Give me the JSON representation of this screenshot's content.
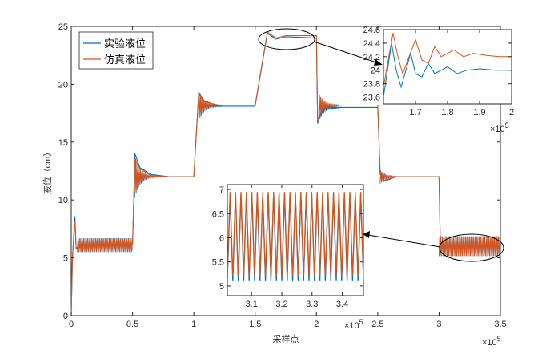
{
  "chart_data": [
    {
      "id": "main",
      "type": "line",
      "xlabel": "采样点",
      "ylabel": "液位（cm）",
      "x_exponent": "×10",
      "x_exponent_power": "5",
      "xlim": [
        0,
        3.5
      ],
      "ylim": [
        0,
        25
      ],
      "xticks": [
        "0",
        "0.5",
        "1",
        "1.5",
        "2",
        "2.5",
        "3",
        "3.5"
      ],
      "yticks": [
        "0",
        "5",
        "10",
        "15",
        "20",
        "25"
      ],
      "grid": false,
      "legend_position": "top-left",
      "series": [
        {
          "name": "实验液位",
          "color": "#0072BD",
          "points": [
            [
              0,
              0
            ],
            [
              0.01,
              5
            ],
            [
              0.03,
              8.6
            ],
            [
              0.04,
              5.8
            ],
            [
              0.1,
              6
            ],
            [
              0.3,
              6.2
            ],
            [
              0.5,
              6.2
            ],
            [
              0.52,
              14
            ],
            [
              0.56,
              12.8
            ],
            [
              0.65,
              12.2
            ],
            [
              0.8,
              12
            ],
            [
              1.0,
              12
            ],
            [
              1.04,
              19.3
            ],
            [
              1.08,
              18.6
            ],
            [
              1.2,
              18.1
            ],
            [
              1.5,
              18.1
            ],
            [
              1.6,
              24.4
            ],
            [
              1.67,
              23.9
            ],
            [
              1.75,
              24.1
            ],
            [
              2.0,
              24.0
            ],
            [
              2.01,
              16.6
            ],
            [
              2.05,
              17.8
            ],
            [
              2.2,
              18.0
            ],
            [
              2.5,
              18.0
            ],
            [
              2.52,
              12.2
            ],
            [
              2.55,
              11.6
            ],
            [
              2.65,
              12.0
            ],
            [
              3.0,
              12.0
            ],
            [
              3.01,
              6.0
            ],
            [
              3.5,
              6.0
            ]
          ],
          "oscillation_bands": [
            {
              "x0": 0.05,
              "x1": 0.5,
              "amplitude": 0.6
            },
            {
              "x0": 3.0,
              "x1": 3.5,
              "amplitude": 0.85
            }
          ]
        },
        {
          "name": "仿真液位",
          "color": "#D95319",
          "points": [
            [
              0,
              0
            ],
            [
              0.01,
              5
            ],
            [
              0.03,
              8.2
            ],
            [
              0.04,
              5.9
            ],
            [
              0.1,
              6
            ],
            [
              0.3,
              6.2
            ],
            [
              0.5,
              6.2
            ],
            [
              0.52,
              13.6
            ],
            [
              0.56,
              12.7
            ],
            [
              0.65,
              12.1
            ],
            [
              0.8,
              12
            ],
            [
              1.0,
              12
            ],
            [
              1.04,
              19.2
            ],
            [
              1.08,
              18.5
            ],
            [
              1.2,
              18.2
            ],
            [
              1.5,
              18.2
            ],
            [
              1.6,
              24.5
            ],
            [
              1.67,
              24.0
            ],
            [
              1.75,
              24.2
            ],
            [
              2.0,
              24.2
            ],
            [
              2.01,
              16.9
            ],
            [
              2.05,
              17.9
            ],
            [
              2.2,
              18.2
            ],
            [
              2.5,
              18.2
            ],
            [
              2.52,
              12.3
            ],
            [
              2.55,
              11.7
            ],
            [
              2.65,
              12.0
            ],
            [
              3.0,
              12.0
            ],
            [
              3.01,
              6.0
            ],
            [
              3.5,
              6.0
            ]
          ],
          "oscillation_bands": [
            {
              "x0": 0.05,
              "x1": 0.5,
              "amplitude": 0.55
            },
            {
              "x0": 3.0,
              "x1": 3.5,
              "amplitude": 0.85
            }
          ]
        }
      ]
    },
    {
      "id": "inset_top",
      "type": "line",
      "x_exponent": "×10",
      "x_exponent_power": "5",
      "xlim": [
        1.6,
        2.0
      ],
      "ylim": [
        23.5,
        24.6
      ],
      "xticks": [
        "1.7",
        "1.8",
        "1.9",
        "2"
      ],
      "yticks": [
        "23.6",
        "23.8",
        "24",
        "24.2",
        "24.4",
        "24.6"
      ],
      "series": [
        {
          "name": "实验液位",
          "color": "#0072BD",
          "points": [
            [
              1.6,
              23.6
            ],
            [
              1.625,
              24.4
            ],
            [
              1.64,
              24.0
            ],
            [
              1.655,
              23.75
            ],
            [
              1.67,
              24.0
            ],
            [
              1.685,
              24.25
            ],
            [
              1.7,
              23.95
            ],
            [
              1.72,
              23.9
            ],
            [
              1.74,
              24.1
            ],
            [
              1.76,
              23.95
            ],
            [
              1.78,
              24.0
            ],
            [
              1.8,
              24.05
            ],
            [
              1.83,
              23.95
            ],
            [
              1.86,
              24.0
            ],
            [
              1.9,
              24.02
            ],
            [
              1.95,
              24.0
            ],
            [
              2.0,
              24.0
            ]
          ]
        },
        {
          "name": "仿真液位",
          "color": "#D95319",
          "points": [
            [
              1.6,
              23.75
            ],
            [
              1.63,
              24.55
            ],
            [
              1.645,
              24.2
            ],
            [
              1.66,
              23.95
            ],
            [
              1.68,
              24.2
            ],
            [
              1.7,
              24.45
            ],
            [
              1.72,
              24.15
            ],
            [
              1.74,
              24.1
            ],
            [
              1.76,
              24.35
            ],
            [
              1.78,
              24.2
            ],
            [
              1.8,
              24.25
            ],
            [
              1.82,
              24.3
            ],
            [
              1.85,
              24.2
            ],
            [
              1.88,
              24.25
            ],
            [
              1.92,
              24.22
            ],
            [
              1.96,
              24.2
            ],
            [
              2.0,
              24.2
            ]
          ]
        }
      ]
    },
    {
      "id": "inset_bottom",
      "type": "line",
      "x_exponent": "×10",
      "x_exponent_power": "5",
      "xlim": [
        3.02,
        3.47
      ],
      "ylim": [
        4.8,
        7.1
      ],
      "xticks": [
        "3.1",
        "3.2",
        "3.3",
        "3.4"
      ],
      "yticks": [
        "5",
        "5.5",
        "6",
        "6.5",
        "7"
      ],
      "series": [
        {
          "name": "实验液位",
          "color": "#0072BD",
          "cycles": 25,
          "max": 6.9,
          "min": 5.1
        },
        {
          "name": "仿真液位",
          "color": "#D95319",
          "cycles": 25,
          "max": 6.95,
          "min": 5.2
        }
      ]
    }
  ]
}
